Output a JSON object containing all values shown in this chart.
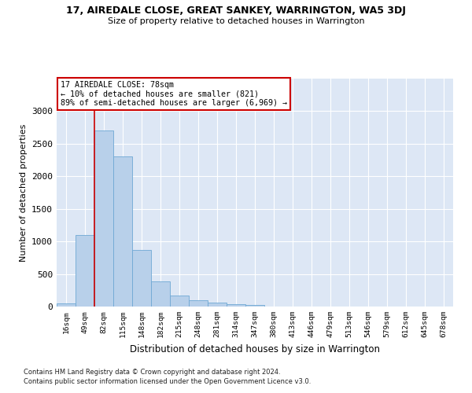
{
  "title1": "17, AIREDALE CLOSE, GREAT SANKEY, WARRINGTON, WA5 3DJ",
  "title2": "Size of property relative to detached houses in Warrington",
  "xlabel": "Distribution of detached houses by size in Warrington",
  "ylabel": "Number of detached properties",
  "categories": [
    "16sqm",
    "49sqm",
    "82sqm",
    "115sqm",
    "148sqm",
    "182sqm",
    "215sqm",
    "248sqm",
    "281sqm",
    "314sqm",
    "347sqm",
    "380sqm",
    "413sqm",
    "446sqm",
    "479sqm",
    "513sqm",
    "546sqm",
    "579sqm",
    "612sqm",
    "645sqm",
    "678sqm"
  ],
  "values": [
    50,
    1100,
    2700,
    2300,
    870,
    390,
    170,
    100,
    65,
    40,
    30,
    0,
    0,
    0,
    0,
    0,
    0,
    0,
    0,
    0,
    0
  ],
  "bar_color": "#b8d0ea",
  "bar_edge_color": "#6fa8d4",
  "plot_bg_color": "#dde7f5",
  "grid_color": "#ffffff",
  "vline_color": "#cc0000",
  "vline_x": 1.5,
  "annotation_text": "17 AIREDALE CLOSE: 78sqm\n← 10% of detached houses are smaller (821)\n89% of semi-detached houses are larger (6,969) →",
  "footnote1": "Contains HM Land Registry data © Crown copyright and database right 2024.",
  "footnote2": "Contains public sector information licensed under the Open Government Licence v3.0.",
  "ylim": [
    0,
    3500
  ],
  "yticks": [
    0,
    500,
    1000,
    1500,
    2000,
    2500,
    3000
  ]
}
